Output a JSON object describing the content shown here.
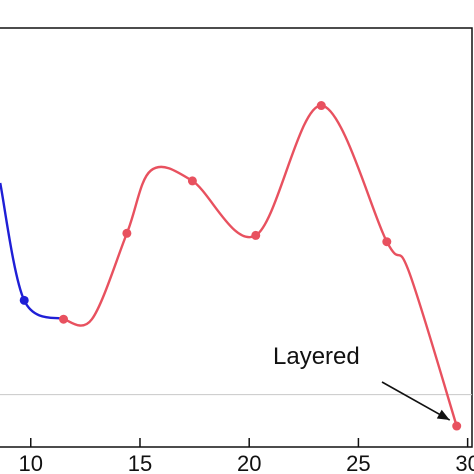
{
  "chart_data": {
    "type": "line",
    "x_ticks": [
      10,
      15,
      20,
      25,
      30
    ],
    "x_tick_labels": [
      "10",
      "15",
      "20",
      "25",
      "30"
    ],
    "xlim": [
      8.5,
      30.2
    ],
    "ylim": [
      0,
      1
    ],
    "grid": false,
    "reference_line_y": 0.125,
    "series": [
      {
        "color": "#1f1fd6",
        "points": [
          [
            8.6,
            0.63
          ],
          [
            9.7,
            0.35
          ],
          [
            11.5,
            0.305
          ]
        ],
        "marker_points": [
          [
            9.7,
            0.35
          ]
        ]
      },
      {
        "color": "#e8515f",
        "points": [
          [
            11.5,
            0.305
          ],
          [
            12.8,
            0.305
          ],
          [
            14.4,
            0.51
          ],
          [
            15.5,
            0.66
          ],
          [
            17.4,
            0.635
          ],
          [
            20.3,
            0.505
          ],
          [
            23.3,
            0.815
          ],
          [
            26.3,
            0.49
          ],
          [
            27.3,
            0.42
          ],
          [
            29.5,
            0.05
          ]
        ],
        "marker_points": [
          [
            11.5,
            0.305
          ],
          [
            14.4,
            0.51
          ],
          [
            17.4,
            0.635
          ],
          [
            20.3,
            0.505
          ],
          [
            23.3,
            0.815
          ],
          [
            26.3,
            0.49
          ],
          [
            29.5,
            0.05
          ]
        ]
      }
    ],
    "annotation": {
      "text": "Layered",
      "target": [
        29.5,
        0.05
      ]
    }
  }
}
